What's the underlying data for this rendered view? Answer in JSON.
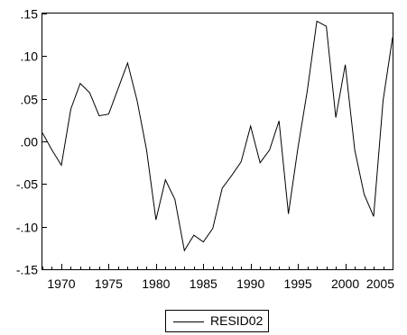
{
  "chart_data": {
    "type": "line",
    "title": "",
    "xlabel": "",
    "ylabel": "",
    "xlim": [
      1968,
      2005
    ],
    "ylim": [
      -0.15,
      0.15
    ],
    "x_ticks": [
      1970,
      1975,
      1980,
      1985,
      1990,
      1995,
      2000,
      2005
    ],
    "x_tick_labels": [
      "1970",
      "1975",
      "1980",
      "1985",
      "1990",
      "1995",
      "2000",
      "2005"
    ],
    "y_ticks": [
      -0.15,
      -0.1,
      -0.05,
      0.0,
      0.05,
      0.1,
      0.15
    ],
    "y_tick_labels": [
      "-.15",
      "-.10",
      "-.05",
      ".00",
      ".05",
      ".10",
      ".15"
    ],
    "grid": false,
    "legend": {
      "position": "bottom-center",
      "entries": [
        "RESID02"
      ]
    },
    "series": [
      {
        "name": "RESID02",
        "color": "#000000",
        "x": [
          1968,
          1969,
          1970,
          1971,
          1972,
          1973,
          1974,
          1975,
          1976,
          1977,
          1978,
          1979,
          1980,
          1981,
          1982,
          1983,
          1984,
          1985,
          1986,
          1987,
          1988,
          1989,
          1990,
          1991,
          1992,
          1993,
          1994,
          1995,
          1996,
          1997,
          1998,
          1999,
          2000,
          2001,
          2002,
          2003,
          2004,
          2005
        ],
        "values": [
          0.01,
          -0.01,
          -0.028,
          0.038,
          0.068,
          0.057,
          0.03,
          0.032,
          0.062,
          0.092,
          0.048,
          -0.01,
          -0.092,
          -0.045,
          -0.068,
          -0.128,
          -0.11,
          -0.118,
          -0.102,
          -0.055,
          -0.04,
          -0.024,
          0.018,
          -0.025,
          -0.01,
          0.024,
          -0.085,
          -0.008,
          0.06,
          0.141,
          0.135,
          0.028,
          0.09,
          -0.01,
          -0.062,
          -0.088,
          0.048,
          0.122
        ]
      }
    ]
  }
}
